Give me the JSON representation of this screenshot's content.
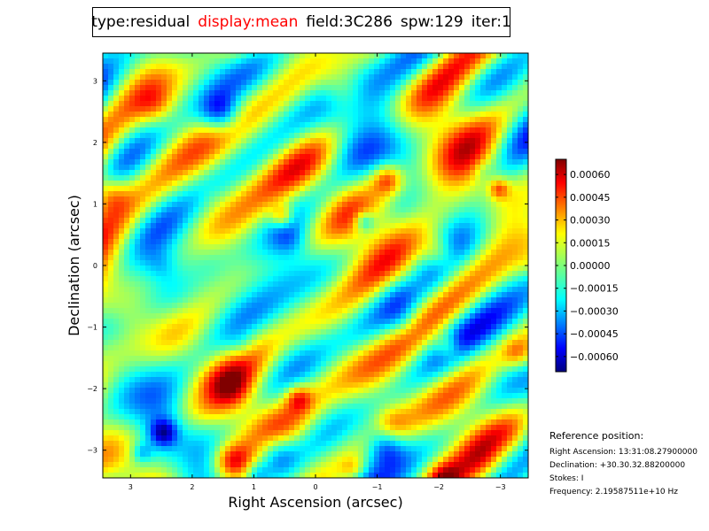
{
  "header": {
    "parts": [
      {
        "text": "type:residual",
        "highlight": false
      },
      {
        "text": "display:mean",
        "highlight": true
      },
      {
        "text": "field:3C286",
        "highlight": false
      },
      {
        "text": "spw:129",
        "highlight": false
      },
      {
        "text": "iter:1",
        "highlight": false
      }
    ],
    "highlight_color": "#ff0000"
  },
  "chart_data": {
    "type": "heatmap",
    "colormap": "jet",
    "xlabel": "Right Ascension (arcsec)",
    "ylabel": "Declination (arcsec)",
    "xlim": [
      3.45,
      -3.45
    ],
    "ylim": [
      -3.45,
      3.45
    ],
    "x_inverted": true,
    "xticks": [
      3,
      2,
      1,
      0,
      -1,
      -2,
      -3
    ],
    "xtick_labels": [
      "3",
      "2",
      "1",
      "0",
      "−1",
      "−2",
      "−3"
    ],
    "yticks": [
      3,
      2,
      1,
      0,
      -1,
      -2,
      -3
    ],
    "ytick_labels": [
      "3",
      "2",
      "1",
      "0",
      "−1",
      "−2",
      "−3"
    ],
    "colorbar": {
      "range": [
        -0.0007,
        0.0007
      ],
      "ticks": [
        0.0006,
        0.00045,
        0.0003,
        0.00015,
        0.0,
        -0.00015,
        -0.0003,
        -0.00045,
        -0.0006
      ],
      "labels": [
        "0.00060",
        "0.00045",
        "0.00030",
        "0.00015",
        "0.00000",
        "−0.00015",
        "−0.00030",
        "−0.00045",
        "−0.00060"
      ]
    }
  },
  "reference": {
    "title": "Reference position:",
    "lines": [
      "Right Ascension: 13:31:08.27900000",
      "Declination: +30.30.32.88200000",
      "Stokes: I",
      "Frequency: 2.19587511e+10 Hz"
    ]
  }
}
